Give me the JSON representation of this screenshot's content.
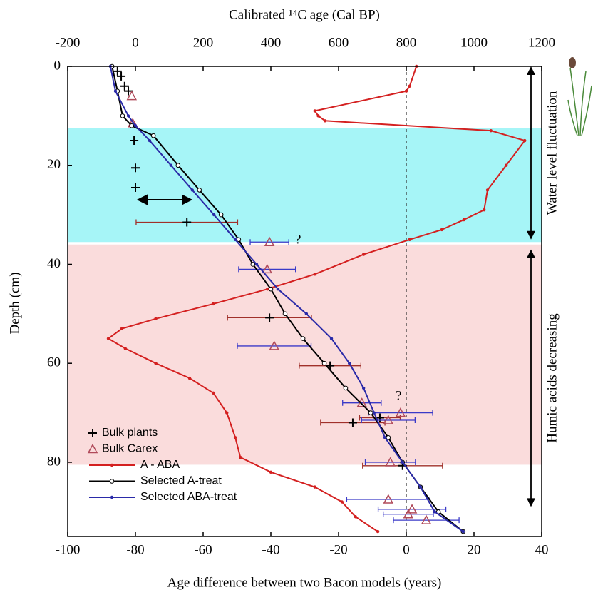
{
  "chart_data": {
    "type": "line",
    "x_label": "Age difference between two Bacon models (years)",
    "x2_label": "Calibrated ¹⁴C age (Cal BP)",
    "y_label": "Depth (cm)",
    "xlim": [
      -100,
      40
    ],
    "xticks": [
      -100,
      -80,
      -60,
      -40,
      -20,
      0,
      20,
      40
    ],
    "x2lim": [
      -200,
      1200
    ],
    "x2ticks": [
      -200,
      0,
      200,
      400,
      600,
      800,
      1000,
      1200
    ],
    "ylim": [
      0,
      95
    ],
    "yticks": [
      0,
      20,
      40,
      60,
      80
    ],
    "y_inverted": true,
    "reference_x": 0,
    "bands": [
      {
        "from": 12.5,
        "to": 35.5,
        "color": "#a6f5f7"
      },
      {
        "from": 36,
        "to": 80.5,
        "color": "#fadcdc"
      }
    ],
    "side_labels": [
      {
        "text": "Water level fluctuation",
        "from": 0,
        "to": 35
      },
      {
        "text": "Humic acids decreasing",
        "from": 37,
        "to": 89
      }
    ],
    "annotations": [
      "?",
      "?"
    ],
    "legend": "lower left",
    "series": [
      {
        "name": "Bulk plants",
        "color": "#000000",
        "error_color": "#a0302a",
        "marker": "plus",
        "line": false,
        "axis": "x2",
        "depth": [
          1,
          2,
          4,
          5,
          15,
          20.5,
          24.5,
          31.5,
          50.8,
          60.5,
          72,
          71,
          80.7
        ],
        "values": [
          -53,
          -42,
          -32,
          -21,
          -4,
          0,
          0,
          152,
          396,
          575,
          642,
          722,
          789
        ],
        "errors": [
          null,
          null,
          null,
          null,
          null,
          null,
          null,
          150,
          124,
          91,
          95,
          60,
          118
        ]
      },
      {
        "name": "Bulk Carex",
        "color": "#b04a5a",
        "error_color": "#3a3ac8",
        "marker": "triangle",
        "line": false,
        "axis": "x2",
        "depth": [
          6,
          11.5,
          35.5,
          41,
          56.5,
          68,
          70,
          71.5,
          80,
          87.5,
          89.5,
          90.5,
          91.7
        ],
        "values": [
          -11,
          -8,
          396,
          389,
          410,
          669,
          783,
          747,
          753,
          747,
          817,
          806,
          859
        ],
        "errors": [
          null,
          null,
          57,
          84,
          109,
          57,
          95,
          79,
          74,
          123,
          100,
          74,
          97
        ]
      },
      {
        "name": "A - ABA",
        "color": "#d42020",
        "marker": "dot",
        "line": true,
        "axis": "x",
        "depth": [
          0,
          4,
          5,
          9,
          10,
          11,
          13,
          15,
          20,
          25,
          29,
          31,
          33,
          35,
          38,
          42,
          45,
          48,
          51,
          53,
          55,
          57,
          60,
          63,
          66,
          70,
          75,
          79,
          82,
          85,
          88,
          91,
          94
        ],
        "values": [
          3,
          1,
          0,
          -27,
          -26,
          -24,
          25,
          35,
          29.5,
          24,
          23,
          17,
          10.5,
          1,
          -12.6,
          -27,
          -41,
          -57,
          -74,
          -84,
          -88,
          -83,
          -74,
          -64,
          -57,
          -53,
          -50.5,
          -49,
          -40,
          -27,
          -19,
          -15,
          -8.4
        ]
      },
      {
        "name": "Selected A-treat",
        "color": "#000000",
        "marker": "circle",
        "line": true,
        "axis": "x2",
        "depth": [
          0,
          5,
          10,
          12,
          14,
          20,
          25,
          30,
          35,
          40,
          45,
          50,
          55,
          60,
          65,
          70,
          75,
          80,
          85,
          90,
          94
        ],
        "values": [
          -69,
          -53,
          -38,
          -11,
          53,
          126,
          189,
          253,
          305,
          347,
          400,
          442,
          495,
          558,
          621,
          695,
          747,
          789,
          842,
          895,
          968
        ]
      },
      {
        "name": "Selected ABA-treat",
        "color": "#2a2aa8",
        "marker": "dot",
        "line": true,
        "axis": "x2",
        "depth": [
          0,
          5,
          10,
          12,
          15,
          20,
          25,
          30,
          35,
          40,
          45,
          50,
          55,
          60,
          65,
          70,
          75,
          80,
          85,
          90,
          94
        ],
        "values": [
          -74,
          -59,
          -21,
          0,
          42,
          105,
          168,
          232,
          295,
          358,
          421,
          505,
          579,
          632,
          674,
          705,
          737,
          789,
          842,
          884,
          968
        ]
      }
    ]
  }
}
